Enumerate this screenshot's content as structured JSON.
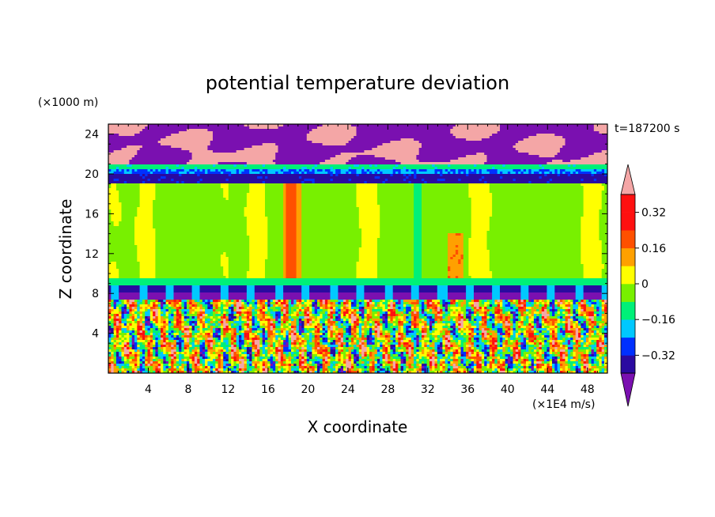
{
  "chart_data": {
    "type": "heatmap",
    "title": "potential temperature deviation",
    "xlabel": "X coordinate",
    "ylabel": "Z coordinate",
    "x_unit": "(×1E4 m/s)",
    "y_unit": "(×1000 m)",
    "time_label": "t=187200 s",
    "xlim": [
      0,
      50
    ],
    "ylim": [
      0,
      25
    ],
    "x_ticks": [
      "4",
      "8",
      "12",
      "16",
      "20",
      "24",
      "28",
      "32",
      "36",
      "40",
      "44",
      "48"
    ],
    "y_ticks": [
      "4",
      "8",
      "12",
      "16",
      "20",
      "24"
    ],
    "colorbar": {
      "levels": [
        -0.4,
        -0.32,
        -0.24,
        -0.16,
        -0.08,
        0,
        0.08,
        0.16,
        0.24,
        0.32,
        0.4
      ],
      "labels": [
        "0.32",
        "0.16",
        "0",
        "−0.16",
        "−0.32"
      ],
      "label_values": [
        0.32,
        0.16,
        0,
        -0.16,
        -0.32
      ],
      "colors": [
        "#7a10b0",
        "#2a0aa0",
        "#0030ff",
        "#00c8ff",
        "#00f078",
        "#78f000",
        "#ffff00",
        "#ffa000",
        "#ff5000",
        "#ff1010",
        "#f4a6a6"
      ],
      "extend": "both"
    },
    "layers": [
      {
        "z": [
          21.0,
          25.0
        ],
        "value": -0.44,
        "description_level": "mixed purple and pink, upper layer"
      },
      {
        "z": [
          19.0,
          21.0
        ],
        "value": -0.2,
        "description_level": "blue / cyan stable band"
      },
      {
        "z": [
          8.8,
          19.0
        ],
        "value": 0.0,
        "description_level": "mostly green with yellow-green columns"
      },
      {
        "z": [
          7.5,
          8.8
        ],
        "value": -0.36,
        "description_level": "dark blue / purple band"
      },
      {
        "z": [
          0.0,
          7.5
        ],
        "value": 0.0,
        "description_level": "turbulent, all levels mixed"
      }
    ]
  }
}
